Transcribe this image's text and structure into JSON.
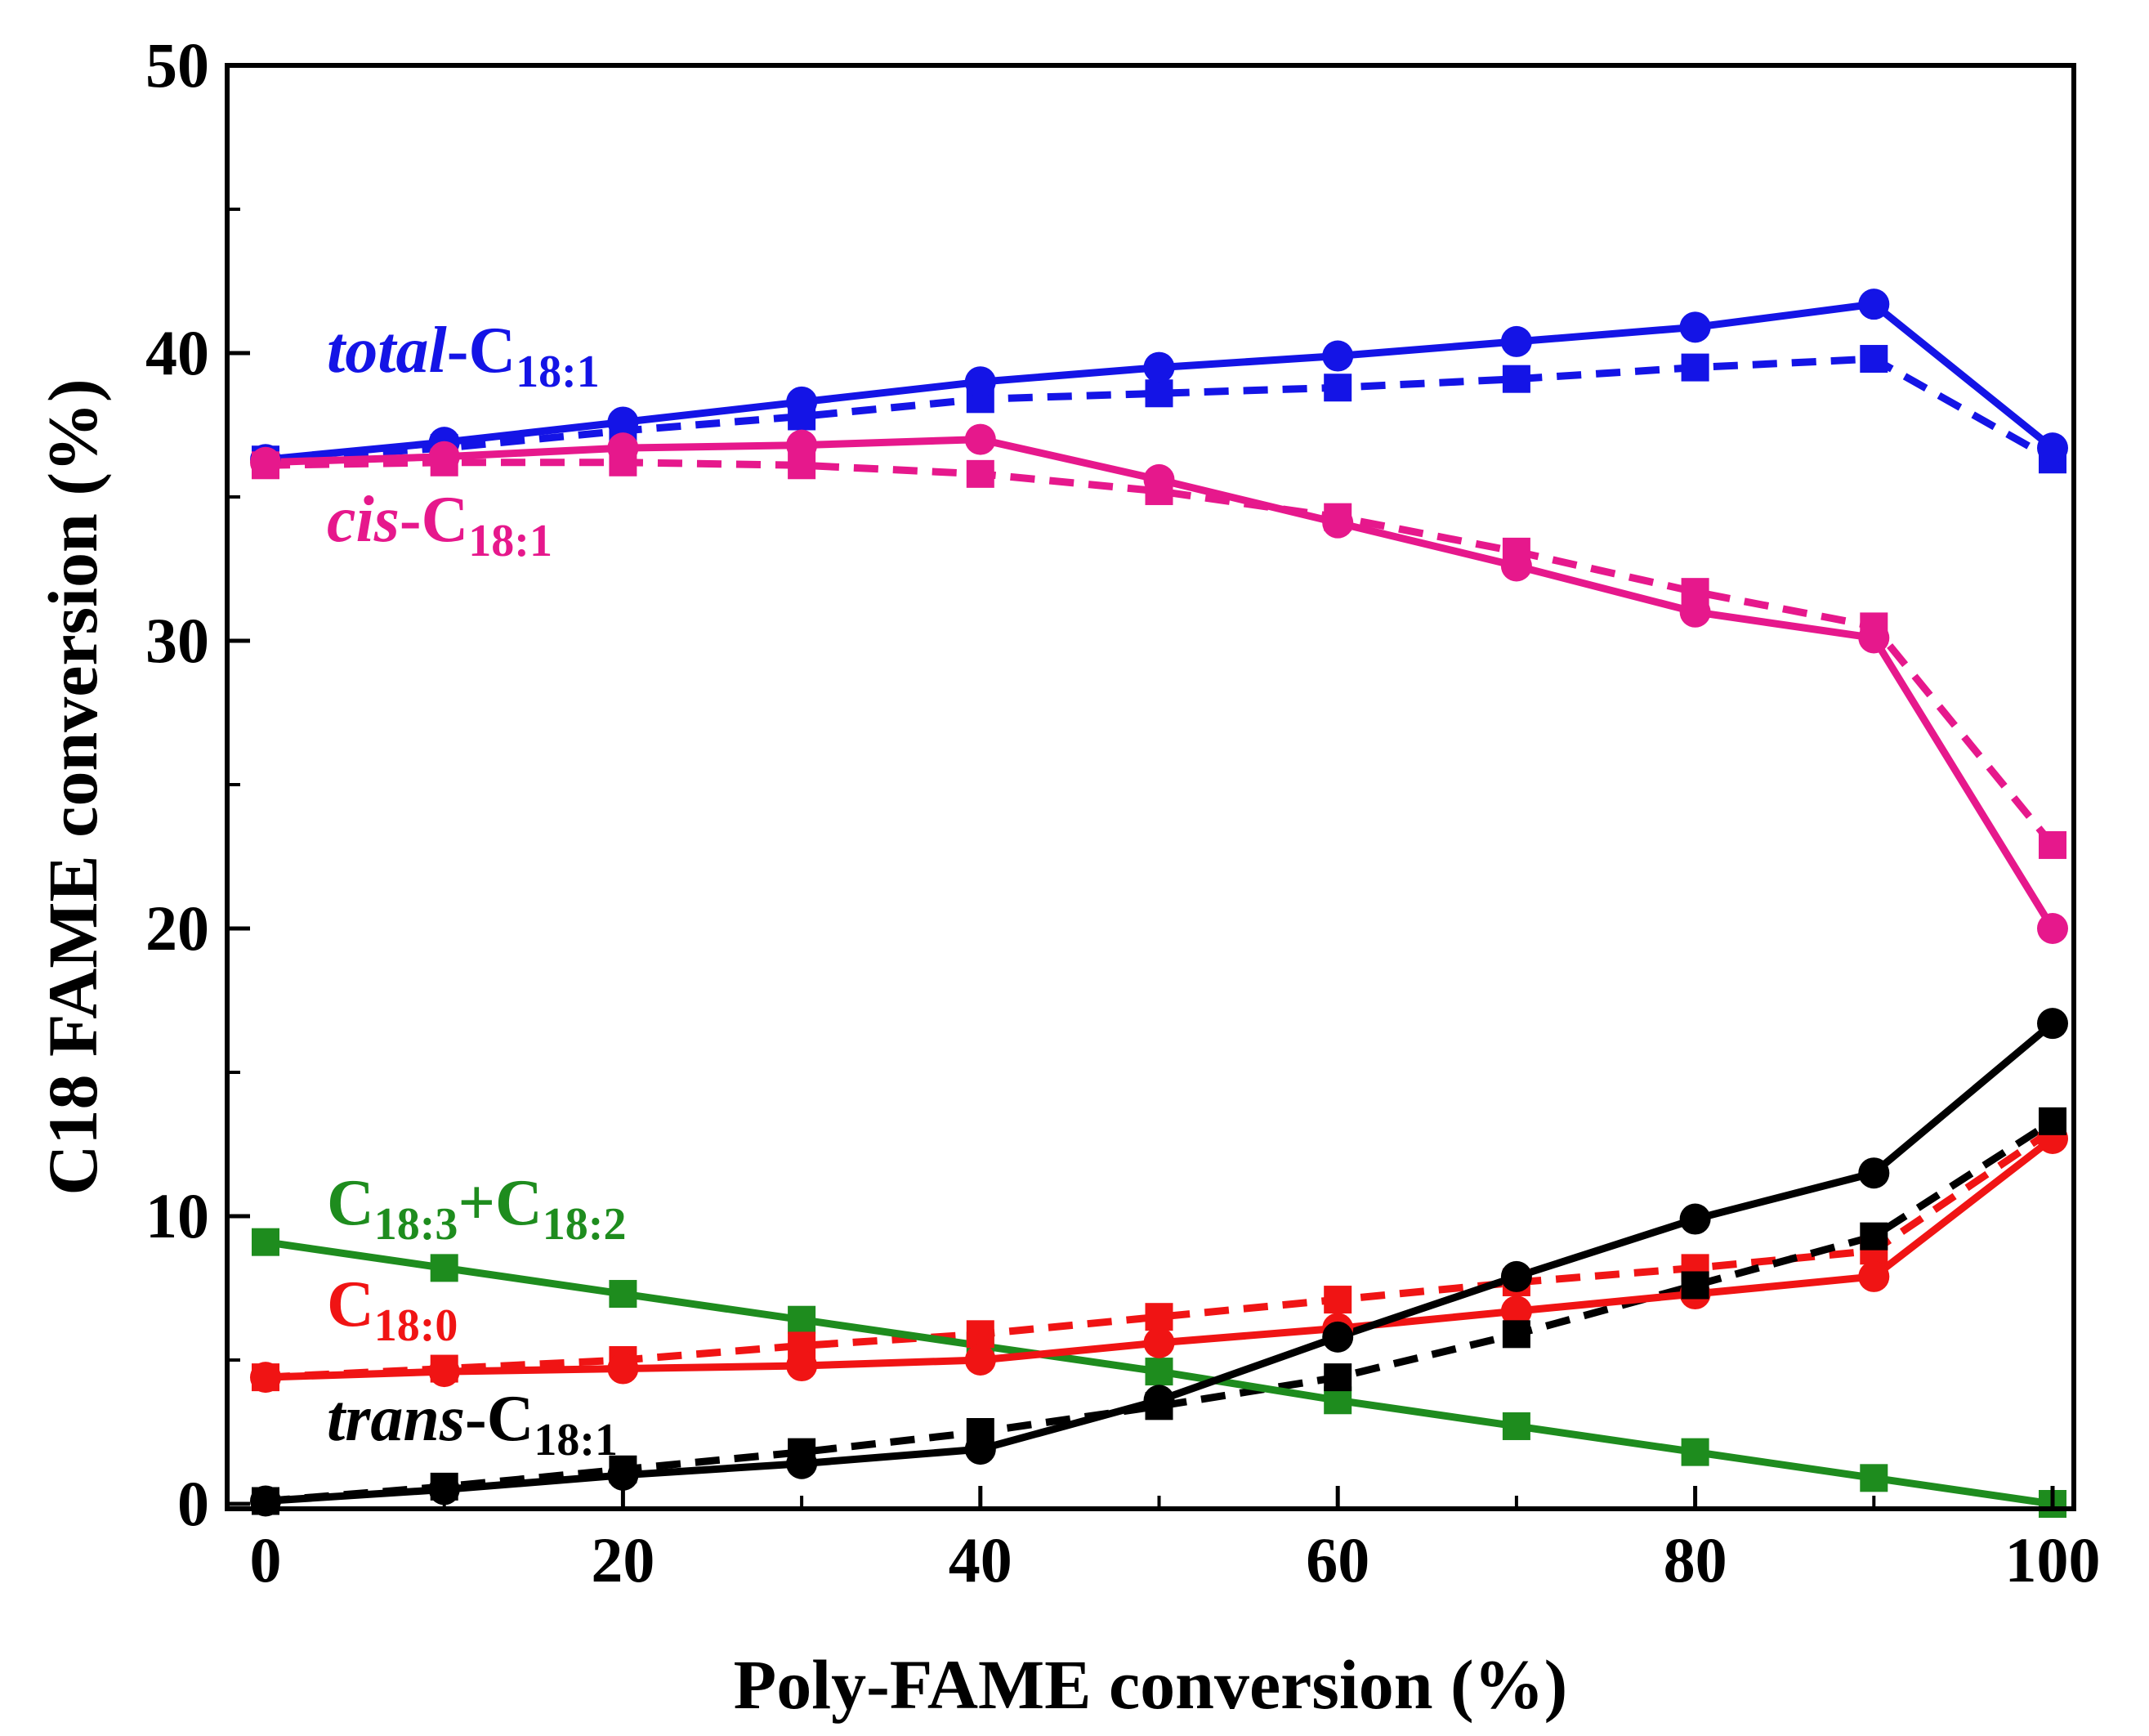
{
  "chart_data": {
    "type": "line",
    "title": "",
    "xlabel": "Poly-FAME conversion (%)",
    "ylabel": "C18 FAME conversion (%)",
    "xlim": [
      0,
      100
    ],
    "ylim": [
      0,
      50
    ],
    "x": [
      0,
      10,
      20,
      30,
      40,
      50,
      60,
      70,
      80,
      90,
      100
    ],
    "xticks": [
      "0",
      "20",
      "40",
      "60",
      "80",
      "100"
    ],
    "yticks": [
      "0",
      "10",
      "20",
      "30",
      "40",
      "50"
    ],
    "series": [
      {
        "key": "total",
        "name": "total-C18:1",
        "label_italic": "total",
        "label_rest": "-C",
        "label_sub": "18:1",
        "color": "#1414e6",
        "solid_circles": [
          36.3,
          36.9,
          37.6,
          38.3,
          39.0,
          39.5,
          39.9,
          40.4,
          40.9,
          41.7,
          36.7
        ],
        "dashed_squares": [
          36.3,
          36.7,
          37.3,
          37.8,
          38.4,
          38.6,
          38.8,
          39.1,
          39.5,
          39.8,
          36.3
        ]
      },
      {
        "key": "cis",
        "name": "cis-C18:1",
        "label_italic": "cis",
        "label_rest": "-C",
        "label_sub": "18:1",
        "color": "#e6188c",
        "solid_circles": [
          36.2,
          36.4,
          36.7,
          36.8,
          37.0,
          35.6,
          34.1,
          32.6,
          31.0,
          30.1,
          20.0
        ],
        "dashed_squares": [
          36.1,
          36.2,
          36.2,
          36.1,
          35.8,
          35.2,
          34.3,
          33.1,
          31.7,
          30.5,
          22.9
        ]
      },
      {
        "key": "c1832",
        "name": "C18:3+C18:2",
        "label_italic": "",
        "label_rest": "C",
        "label_sub": "18:3",
        "label_rest2": "+C",
        "label_sub2": "18:2",
        "color": "#1e8c1e",
        "solid_squares": [
          9.1,
          8.2,
          7.3,
          6.4,
          5.5,
          4.6,
          3.6,
          2.7,
          1.8,
          0.9,
          0.0
        ]
      },
      {
        "key": "c180",
        "name": "C18:0",
        "label_italic": "",
        "label_rest": "C",
        "label_sub": "18:0",
        "color": "#f01414",
        "solid_circles": [
          4.4,
          4.6,
          4.7,
          4.8,
          5.0,
          5.6,
          6.1,
          6.7,
          7.3,
          7.9,
          12.7
        ],
        "dashed_squares": [
          4.4,
          4.7,
          5.0,
          5.5,
          5.9,
          6.5,
          7.1,
          7.7,
          8.2,
          8.8,
          13.0
        ]
      },
      {
        "key": "trans",
        "name": "trans-C18:1",
        "label_italic": "trans",
        "label_rest": "-C",
        "label_sub": "18:1",
        "color": "#000000",
        "solid_circles": [
          0.1,
          0.5,
          1.0,
          1.4,
          1.9,
          3.6,
          5.8,
          7.9,
          9.9,
          11.5,
          16.7
        ],
        "dashed_squares": [
          0.1,
          0.6,
          1.2,
          1.8,
          2.5,
          3.4,
          4.4,
          5.9,
          7.6,
          9.3,
          13.3
        ]
      }
    ]
  }
}
